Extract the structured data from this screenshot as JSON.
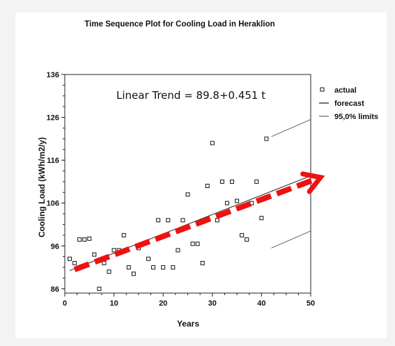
{
  "chart_data": {
    "type": "scatter",
    "title": "Time Sequence Plot for Cooling Load in Heraklion",
    "xlabel": "Years",
    "ylabel": "Cooling Load (kWh/m2/y)",
    "xlim": [
      0,
      50
    ],
    "ylim": [
      85,
      136
    ],
    "x_ticks": [
      0,
      10,
      20,
      30,
      40,
      50
    ],
    "y_ticks": [
      86,
      96,
      106,
      116,
      126,
      136
    ],
    "annotation": "Linear Trend = 89.8+0.451 t",
    "legend": {
      "position": "right",
      "entries": [
        {
          "label": "actual",
          "marker": "square"
        },
        {
          "label": "forecast",
          "marker": "line"
        },
        {
          "label": "95,0% limits",
          "marker": "thin-line"
        }
      ]
    },
    "series": [
      {
        "name": "actual",
        "kind": "markers",
        "color": "#111111",
        "points": [
          [
            1,
            93
          ],
          [
            2,
            92
          ],
          [
            3,
            97.5
          ],
          [
            4,
            97.5
          ],
          [
            5,
            97.7
          ],
          [
            6,
            94
          ],
          [
            7,
            86
          ],
          [
            8,
            92
          ],
          [
            9,
            90
          ],
          [
            10,
            95
          ],
          [
            11,
            95
          ],
          [
            12,
            98.5
          ],
          [
            13,
            91
          ],
          [
            14,
            89.5
          ],
          [
            15,
            95.5
          ],
          [
            16,
            96.5
          ],
          [
            17,
            93
          ],
          [
            18,
            91
          ],
          [
            19,
            102
          ],
          [
            20,
            91
          ],
          [
            21,
            102
          ],
          [
            22,
            91
          ],
          [
            23,
            95
          ],
          [
            24,
            102
          ],
          [
            25,
            108
          ],
          [
            26,
            96.5
          ],
          [
            27,
            96.5
          ],
          [
            28,
            92
          ],
          [
            29,
            110
          ],
          [
            30,
            120
          ],
          [
            31,
            102
          ],
          [
            32,
            111
          ],
          [
            33,
            106
          ],
          [
            34,
            111
          ],
          [
            35,
            106.5
          ],
          [
            36,
            98.5
          ],
          [
            37,
            97.5
          ],
          [
            38,
            106
          ],
          [
            39,
            111
          ],
          [
            40,
            102.5
          ],
          [
            41,
            121
          ]
        ]
      },
      {
        "name": "forecast",
        "kind": "line",
        "color": "#222222",
        "points": [
          [
            1,
            90.25
          ],
          [
            50,
            112.35
          ]
        ]
      },
      {
        "name": "95,0% limits",
        "kind": "band",
        "color": "#444444",
        "upper": [
          [
            42,
            121.5
          ],
          [
            50,
            125.5
          ]
        ],
        "lower": [
          [
            42,
            95.5
          ],
          [
            50,
            99.5
          ]
        ]
      }
    ],
    "overlay_arrow": {
      "color": "#ee1111",
      "from": [
        2,
        90.5
      ],
      "to": [
        52,
        112
      ]
    }
  }
}
